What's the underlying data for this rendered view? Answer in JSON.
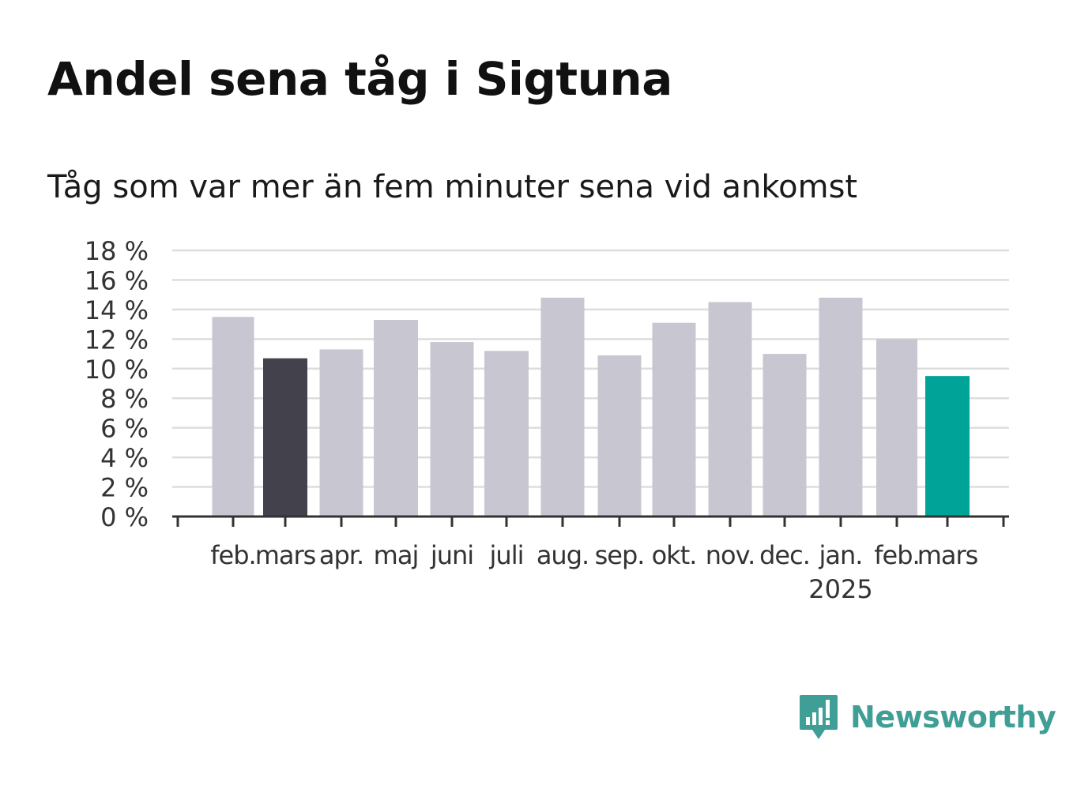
{
  "title": "Andel sena tåg i Sigtuna",
  "subtitle": "Tåg som var mer än fem minuter sena vid ankomst",
  "brand": "Newsworthy",
  "colors": {
    "default_bar": "#c8c7d1",
    "highlight_prev": "#43414c",
    "highlight_current": "#00a397",
    "grid": "#dddddd",
    "axis": "#333333",
    "brand": "#3f9e96"
  },
  "chart_data": {
    "type": "bar",
    "categories": [
      "feb.",
      "mars",
      "apr.",
      "maj",
      "juni",
      "juli",
      "aug.",
      "sep.",
      "okt.",
      "nov.",
      "dec.",
      "jan.",
      "feb.",
      "mars"
    ],
    "year_label": {
      "category_index": 11,
      "text": "2025"
    },
    "values": [
      13.5,
      10.7,
      11.3,
      13.3,
      11.8,
      11.2,
      14.8,
      10.9,
      13.1,
      14.5,
      11.0,
      14.8,
      12.0,
      9.5
    ],
    "bar_highlight": [
      "default",
      "prev",
      "default",
      "default",
      "default",
      "default",
      "default",
      "default",
      "default",
      "default",
      "default",
      "default",
      "default",
      "current"
    ],
    "ylim": [
      0,
      18
    ],
    "y_ticks": [
      0,
      2,
      4,
      6,
      8,
      10,
      12,
      14,
      16,
      18
    ],
    "y_tick_labels": [
      "0 %",
      "2 %",
      "4 %",
      "6 %",
      "8 %",
      "10 %",
      "12 %",
      "14 %",
      "16 %",
      "18 %"
    ],
    "grid": true,
    "legend": "none"
  }
}
